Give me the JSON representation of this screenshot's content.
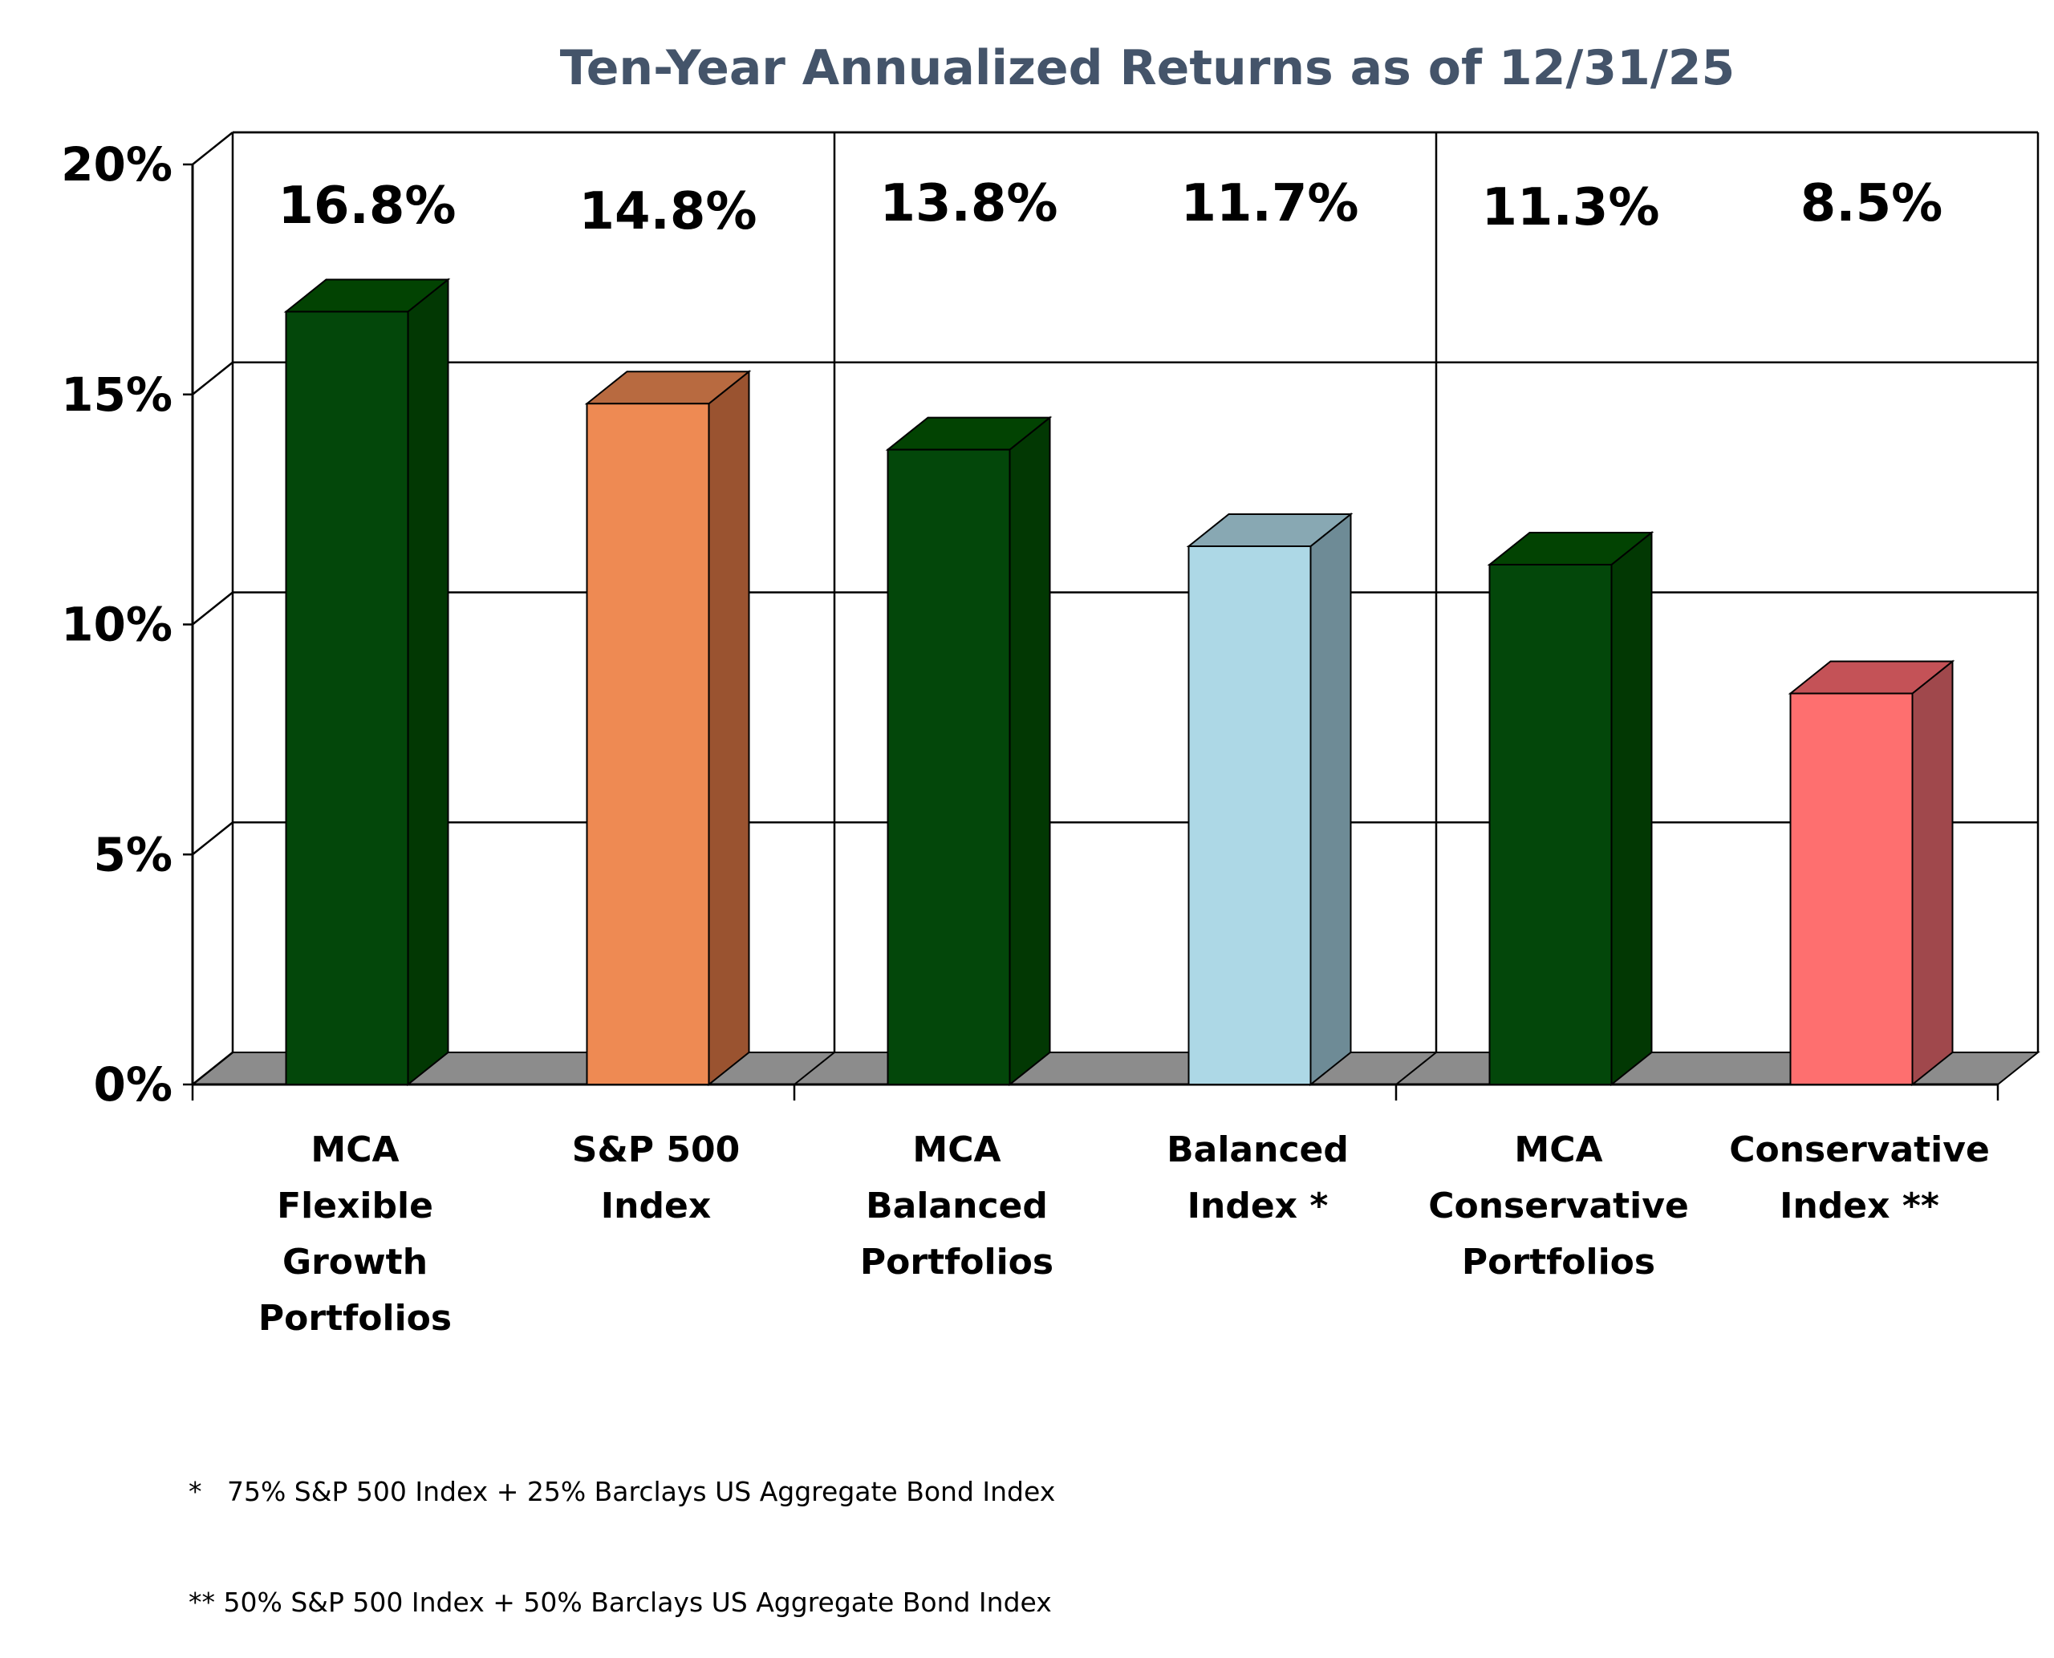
{
  "chart_data": {
    "type": "bar",
    "title": "Ten-Year Annualized Returns as of 12/31/25",
    "categories": [
      [
        "MCA",
        "Flexible",
        "Growth",
        "Portfolios"
      ],
      [
        "S&P 500",
        "Index"
      ],
      [
        "MCA",
        "Balanced",
        "Portfolios"
      ],
      [
        "Balanced",
        "Index *"
      ],
      [
        "MCA",
        "Conservative",
        "Portfolios"
      ],
      [
        "Conservative",
        "Index **"
      ]
    ],
    "values": [
      16.8,
      14.8,
      13.8,
      11.7,
      11.3,
      8.5
    ],
    "data_labels": [
      "16.8%",
      "14.8%",
      "13.8%",
      "11.7%",
      "11.3%",
      "8.5%"
    ],
    "ylim": [
      0,
      20
    ],
    "yticks": [
      0,
      5,
      10,
      15,
      20
    ],
    "ytick_labels": [
      "0%",
      "5%",
      "10%",
      "15%",
      "20%"
    ],
    "xlabel": "",
    "ylabel": "",
    "grid": true,
    "style": "3d",
    "colors": {
      "front": [
        "#03470a",
        "#ee8a53",
        "#03470a",
        "#add8e6",
        "#03470a",
        "#fe6f6f"
      ],
      "side": [
        "#023803",
        "#9a5330",
        "#023803",
        "#6e8b96",
        "#023803",
        "#a0484c"
      ],
      "top": [
        "#024302",
        "#b86a40",
        "#024302",
        "#88a8b3",
        "#024302",
        "#c45257"
      ],
      "title": "#44546a",
      "floor": "#8c8c8c"
    }
  },
  "footnotes": [
    "*   75% S&P 500 Index + 25% Barclays US Aggregate Bond Index",
    "** 50% S&P 500 Index + 50% Barclays US Aggregate Bond Index"
  ]
}
